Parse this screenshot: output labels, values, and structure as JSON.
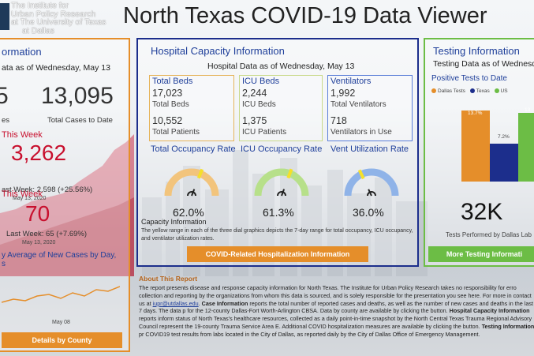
{
  "header": {
    "logo_lines": [
      "The Institute for",
      "Urban Policy Research",
      "at The University of Texas",
      "at Dallas"
    ],
    "title": "North Texas COVID-19 Data Viewer"
  },
  "case_panel": {
    "title": "ormation",
    "subtitle": "ata as of Wednesday, May 13",
    "new_cases_partial": "5",
    "total_cases": "13,095",
    "total_cases_label": "Total Cases to Date",
    "new_cases_label_partial": "es",
    "week_cases_label": "This Week",
    "week_cases": "3,262",
    "last_week_cases": "ast Week: 2,598 (+25.56%)",
    "last_week_date": "May 13, 2020",
    "week_deaths_label": "This Week",
    "week_deaths": "70",
    "last_week_deaths": "Last Week: 65 (+7.69%)",
    "last_week_deaths_date": "May 13, 2020",
    "avg_title_1": "y Average of New Cases by Day,",
    "avg_title_2": "s",
    "avg_axis_label": "May 08",
    "button": "Details by County"
  },
  "hospital_panel": {
    "title": "Hospital Capacity Information",
    "subtitle": "Hospital Data as of Wednesday, May 13",
    "beds": {
      "head": "Total Beds",
      "v1": "17,023",
      "l1": "Total Beds",
      "v2": "10,552",
      "l2": "Total Patients"
    },
    "icu": {
      "head": "ICU Beds",
      "v1": "2,244",
      "l1": "ICU Beds",
      "v2": "1,375",
      "l2": "ICU Patients"
    },
    "vent": {
      "head": "Ventilators",
      "v1": "1,992",
      "l1": "Total Ventilators",
      "v2": "718",
      "l2": "Ventilators in Use"
    },
    "gauges": [
      {
        "title": "Total Occupancy Rate",
        "value": "62.0%",
        "fraction": 0.62,
        "color": "#f2c47c"
      },
      {
        "title": "ICU Occupancy Rate",
        "value": "61.3%",
        "fraction": 0.613,
        "color": "#b7e08a"
      },
      {
        "title": "Vent Utilization Rate",
        "value": "36.0%",
        "fraction": 0.36,
        "color": "#8fb3e8"
      }
    ],
    "capacity_title": "Capacity Information",
    "capacity_text": "The yellow range in each of the three dial graphics depicts the 7-day range for total occupancy, ICU occupancy, and ventilator utilization rates.",
    "button": "COVID-Related Hospitalization Information"
  },
  "testing_panel": {
    "title": "Testing Information",
    "subtitle": "Testing Data as of Wednesda",
    "chart_title": "Positive Tests to Date",
    "legend": [
      "Dallas Tests",
      "Texas",
      "US"
    ],
    "bar_labels": [
      "13.7%",
      "7.2%",
      "13"
    ],
    "big": "32K",
    "big_label": "Tests Performed by Dallas Lab",
    "button": "More Testing Informati"
  },
  "about": {
    "title": "About This Report",
    "p1": "The report presents disease and response capacity information for North Texas. The Institute for Urban Policy Research takes no responsibility for erro collection and reporting by the organizations from whom this data is sourced, and is solely responsible for the presentation you see here. For more in contact us at",
    "email": "iupr@utdallas.edu",
    "p2a": "Case Information",
    "p2b": "reports the total number of reported cases and deaths, as well as the number of new cases and deaths in the last 7 days. The data p for the 12-county Dallas-Fort Worth-Arlington CBSA. Data by county are available by clicking the button.",
    "p2c": "Hospital Capacity Information",
    "p2d": "reports inform status of North Texas's healthcare resources, collected as a daily point-in-time snapshot by the North Central Texas Trauma Regional Advisory Council represent the 19-county Trauma Service Area E. Additional COVID hospitalization measures are available by clicking the button.",
    "p2e": "Testing Information",
    "p2f": "pr COVID19 test results from labs located in the City of Dallas, as reported daily by the City of Dallas Office of Emergency Management."
  },
  "colors": {
    "orange": "#e58e2a",
    "navy": "#1c2e8c",
    "green": "#6cbd45",
    "red": "#c8102e",
    "blue": "#1f3f9a"
  }
}
